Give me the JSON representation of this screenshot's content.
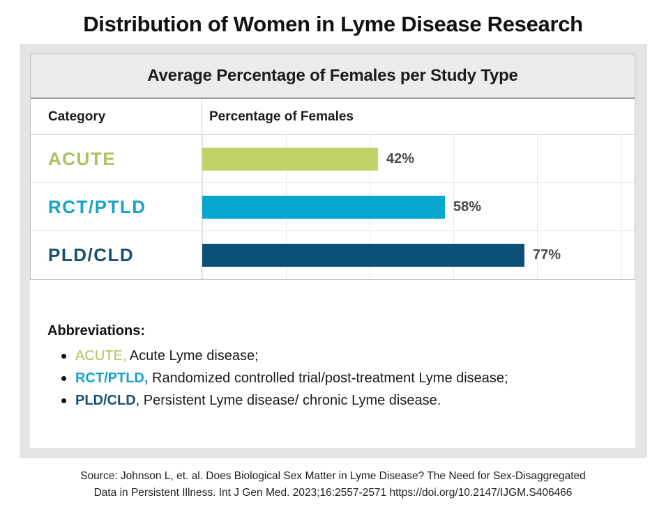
{
  "page": {
    "title": "Distribution of Women in Lyme Disease Research"
  },
  "chart_data": {
    "type": "bar",
    "orientation": "horizontal",
    "title": "Average Percentage of Females per Study Type",
    "column_headers": {
      "category": "Category",
      "percentage": "Percentage of Females"
    },
    "categories": [
      "ACUTE",
      "RCT/PTLD",
      "PLD/CLD"
    ],
    "values": [
      42,
      58,
      77
    ],
    "value_labels": [
      "42%",
      "58%",
      "77%"
    ],
    "xlim": [
      0,
      100
    ],
    "gridline_step_pct": 20,
    "grid": "vertical",
    "legend": "none",
    "bar_colors": [
      "#c1d368",
      "#06a6ce",
      "#0c5078"
    ],
    "category_label_colors": [
      "#a9c45e",
      "#14a3c9",
      "#17506f"
    ],
    "value_label_color": "#4a4a4a"
  },
  "abbreviations": {
    "heading": "Abbreviations:",
    "items": [
      {
        "abbr": "ACUTE,",
        "abbr_color": "#a9c45e",
        "abbr_bold": false,
        "text": " Acute Lyme disease;"
      },
      {
        "abbr": "RCT/PTLD,",
        "abbr_color": "#14a3c9",
        "abbr_bold": true,
        "text": " Randomized controlled trial/post-treatment Lyme disease;"
      },
      {
        "abbr": "PLD/CLD",
        "abbr_color": "#17506f",
        "abbr_bold": true,
        "text": ", Persistent Lyme disease/ chronic Lyme disease."
      }
    ]
  },
  "source": {
    "line1": "Source: Johnson L, et. al. Does Biological Sex Matter in Lyme Disease? The Need for Sex-Disaggregated",
    "line2": "Data in Persistent Illness. Int J Gen Med. 2023;16:2557-2571 https://doi.org/10.2147/IJGM.S406466"
  }
}
